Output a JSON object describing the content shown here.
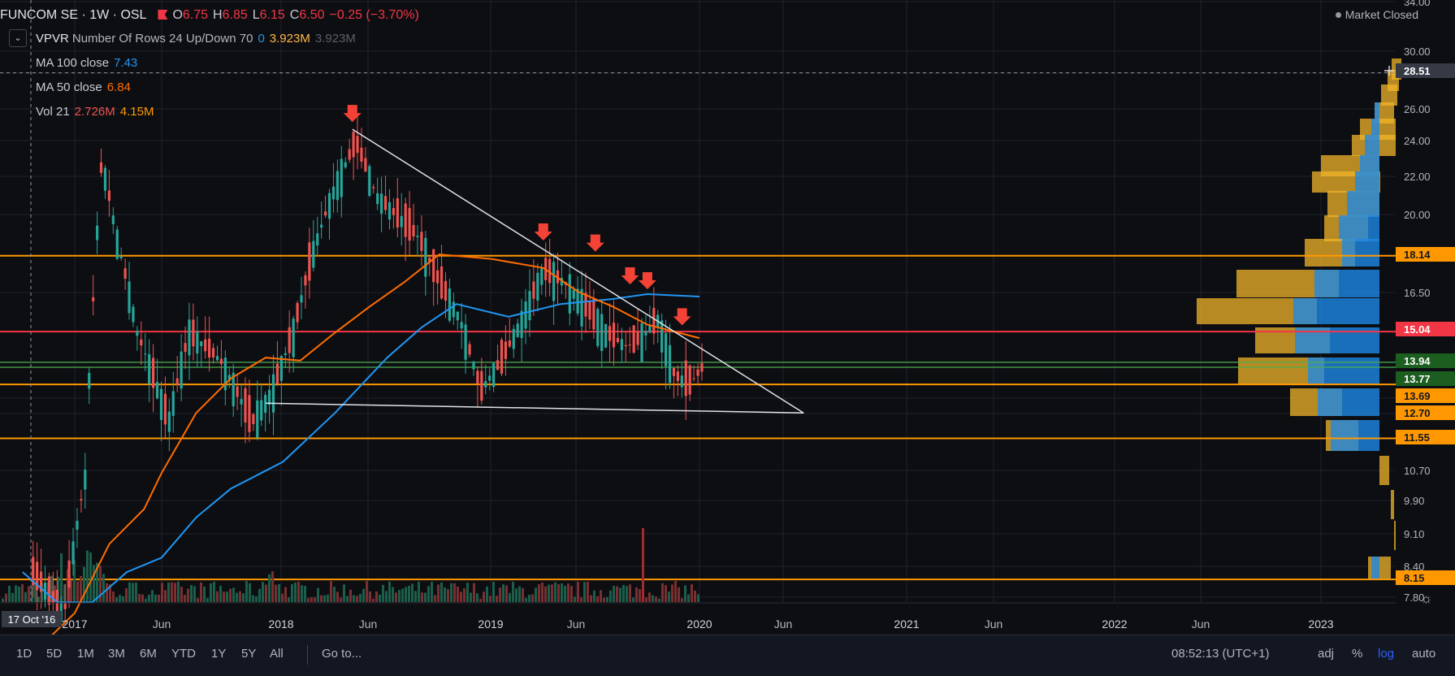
{
  "header": {
    "symbol": "FUNCOM SE · 1W · OSL",
    "ohlc": [
      {
        "label": "O",
        "value": "6.75"
      },
      {
        "label": "H",
        "value": "6.85"
      },
      {
        "label": "L",
        "value": "6.15"
      },
      {
        "label": "C",
        "value": "6.50"
      }
    ],
    "change": "−0.25 (−3.70%)",
    "market_status": "Market Closed"
  },
  "indicators": {
    "vpvr": {
      "name": "VPVR",
      "params": "Number Of Rows 24 Up/Down 70",
      "v1": "0",
      "v2": "3.923M",
      "v3": "3.923M"
    },
    "ma100": {
      "name": "MA 100 close",
      "value": "7.43"
    },
    "ma50": {
      "name": "MA 50 close",
      "value": "6.84"
    },
    "vol": {
      "name": "Vol 21",
      "v1": "2.726M",
      "v2": "4.15M"
    }
  },
  "colors": {
    "up": "#26a69a",
    "down": "#ef5350",
    "ma100": "#2196f3",
    "ma50": "#ff6d00",
    "level": "#ff9800",
    "level_red": "#f23645",
    "green_band": "#4caf50"
  },
  "bottom_bar": {
    "ranges": [
      "1D",
      "5D",
      "1M",
      "3M",
      "6M",
      "YTD",
      "1Y",
      "5Y",
      "All"
    ],
    "goto": "Go to...",
    "clock": "08:52:13 (UTC+1)",
    "toggles": [
      "adj",
      "%",
      "log",
      "auto"
    ],
    "active_toggle": "log",
    "settings_icon": "gear-icon"
  },
  "chart_data": {
    "type": "candlestick",
    "title": "FUNCOM SE · 1W · OSL",
    "y_scale": "log",
    "y_ticks": [
      "34.00",
      "30.00",
      "28.00",
      "26.00",
      "24.00",
      "22.00",
      "20.00",
      "16.50",
      "13.69",
      "12.70",
      "10.70",
      "9.90",
      "9.10",
      "8.40",
      "7.80"
    ],
    "price_labels": [
      {
        "text": "28.51",
        "kind": "crosshair"
      },
      {
        "text": "18.14",
        "kind": "level"
      },
      {
        "text": "15.04",
        "kind": "level_red"
      },
      {
        "text": "13.94",
        "kind": "band"
      },
      {
        "text": "13.77",
        "kind": "band"
      },
      {
        "text": "13.69",
        "kind": "level"
      },
      {
        "text": "12.70",
        "kind": "level"
      },
      {
        "text": "11.55",
        "kind": "level"
      },
      {
        "text": "8.15",
        "kind": "level"
      }
    ],
    "horizontal_levels": [
      {
        "price": 18.14,
        "kind": "level"
      },
      {
        "price": 15.04,
        "kind": "level_red"
      },
      {
        "price": 13.94,
        "kind": "band"
      },
      {
        "price": 13.77,
        "kind": "band"
      },
      {
        "price": 13.2,
        "kind": "level"
      },
      {
        "price": 11.55,
        "kind": "level"
      },
      {
        "price": 8.15,
        "kind": "level"
      }
    ],
    "x_ticks": [
      "2017",
      "Jun",
      "2018",
      "Jun",
      "2019",
      "Jun",
      "2020",
      "Jun",
      "2021",
      "Jun",
      "2022",
      "Jun",
      "2023"
    ],
    "crosshair_date": "17 Oct '16",
    "crosshair_price": 28.51,
    "trendlines": [
      {
        "from": [
          "2018-05",
          24.8
        ],
        "to": [
          "2020-07",
          12.3
        ]
      },
      {
        "from": [
          "2017-12",
          12.6
        ],
        "to": [
          "2020-07",
          12.3
        ]
      }
    ],
    "arrow_markers": [
      {
        "date": "2018-05",
        "price": 24.8
      },
      {
        "date": "2019-04",
        "price": 18.5
      },
      {
        "date": "2019-07",
        "price": 18.0
      },
      {
        "date": "2019-09",
        "price": 16.6
      },
      {
        "date": "2019-10",
        "price": 16.4
      },
      {
        "date": "2019-12",
        "price": 15.0
      }
    ],
    "ma50_points": [
      [
        "2016-11",
        6.9
      ],
      [
        "2017-01",
        7.5
      ],
      [
        "2017-03",
        8.9
      ],
      [
        "2017-05",
        9.7
      ],
      [
        "2017-06",
        10.6
      ],
      [
        "2017-08",
        12.3
      ],
      [
        "2017-10",
        13.4
      ],
      [
        "2017-12",
        14.1
      ],
      [
        "2018-02",
        14.0
      ],
      [
        "2018-04",
        15.0
      ],
      [
        "2018-06",
        16.0
      ],
      [
        "2018-08",
        17.0
      ],
      [
        "2018-10",
        18.2
      ],
      [
        "2019-01",
        18.0
      ],
      [
        "2019-04",
        17.6
      ],
      [
        "2019-06",
        16.6
      ],
      [
        "2019-08",
        16.0
      ],
      [
        "2019-10",
        15.3
      ],
      [
        "2020-01",
        14.8
      ]
    ],
    "ma100_points": [
      [
        "2016-10",
        8.3
      ],
      [
        "2016-12",
        7.7
      ],
      [
        "2017-02",
        7.7
      ],
      [
        "2017-04",
        8.3
      ],
      [
        "2017-06",
        8.6
      ],
      [
        "2017-08",
        9.5
      ],
      [
        "2017-10",
        10.2
      ],
      [
        "2018-01",
        10.9
      ],
      [
        "2018-04",
        12.3
      ],
      [
        "2018-07",
        14.1
      ],
      [
        "2018-09",
        15.2
      ],
      [
        "2018-11",
        16.1
      ],
      [
        "2019-02",
        15.6
      ],
      [
        "2019-05",
        16.1
      ],
      [
        "2019-08",
        16.3
      ],
      [
        "2019-10",
        16.5
      ],
      [
        "2020-01",
        16.4
      ]
    ],
    "candles_summary": {
      "start": "2016-10",
      "end": "2020-01",
      "high": 25.8,
      "low": 7.8
    },
    "vpvr_rows_note": "volume profile histogram on right edge"
  }
}
